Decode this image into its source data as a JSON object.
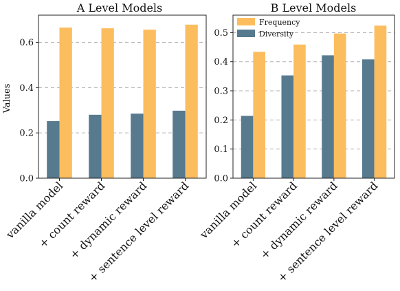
{
  "colors": {
    "diversity": "#577a8f",
    "frequency": "#fcbd5e",
    "grid": "#b0b0b0"
  },
  "chart_data": [
    {
      "type": "bar",
      "title": "A Level Models",
      "ylabel": "Values",
      "xlabel": "",
      "categories": [
        "vanilla model",
        "+ count reward",
        "+ dynamic reward",
        "+ sentence level reward"
      ],
      "series": [
        {
          "key": "diversity",
          "values": [
            0.252,
            0.28,
            0.285,
            0.298
          ]
        },
        {
          "key": "frequency",
          "values": [
            0.665,
            0.662,
            0.656,
            0.678
          ]
        }
      ],
      "ylim": [
        0,
        0.72
      ],
      "yticks": [
        "0.0",
        "0.2",
        "0.4",
        "0.6"
      ],
      "grid": "y-dashed",
      "legend": null
    },
    {
      "type": "bar",
      "title": "B Level Models",
      "ylabel": "",
      "xlabel": "",
      "categories": [
        "vanilla model",
        "+ count reward",
        "+ dynamic reward",
        "+ sentence level reward"
      ],
      "series": [
        {
          "key": "diversity",
          "name": "Diversity",
          "values": [
            0.214,
            0.353,
            0.422,
            0.408
          ]
        },
        {
          "key": "frequency",
          "name": "Frequency",
          "values": [
            0.434,
            0.459,
            0.497,
            0.524
          ]
        }
      ],
      "ylim": [
        0,
        0.56
      ],
      "yticks": [
        "0.0",
        "0.1",
        "0.2",
        "0.3",
        "0.4",
        "0.5"
      ],
      "grid": "y-dashed",
      "legend": {
        "placement": "top-left",
        "entries": [
          {
            "series": "frequency",
            "label": "Frequency"
          },
          {
            "series": "diversity",
            "label": "Diversity"
          }
        ]
      }
    }
  ]
}
